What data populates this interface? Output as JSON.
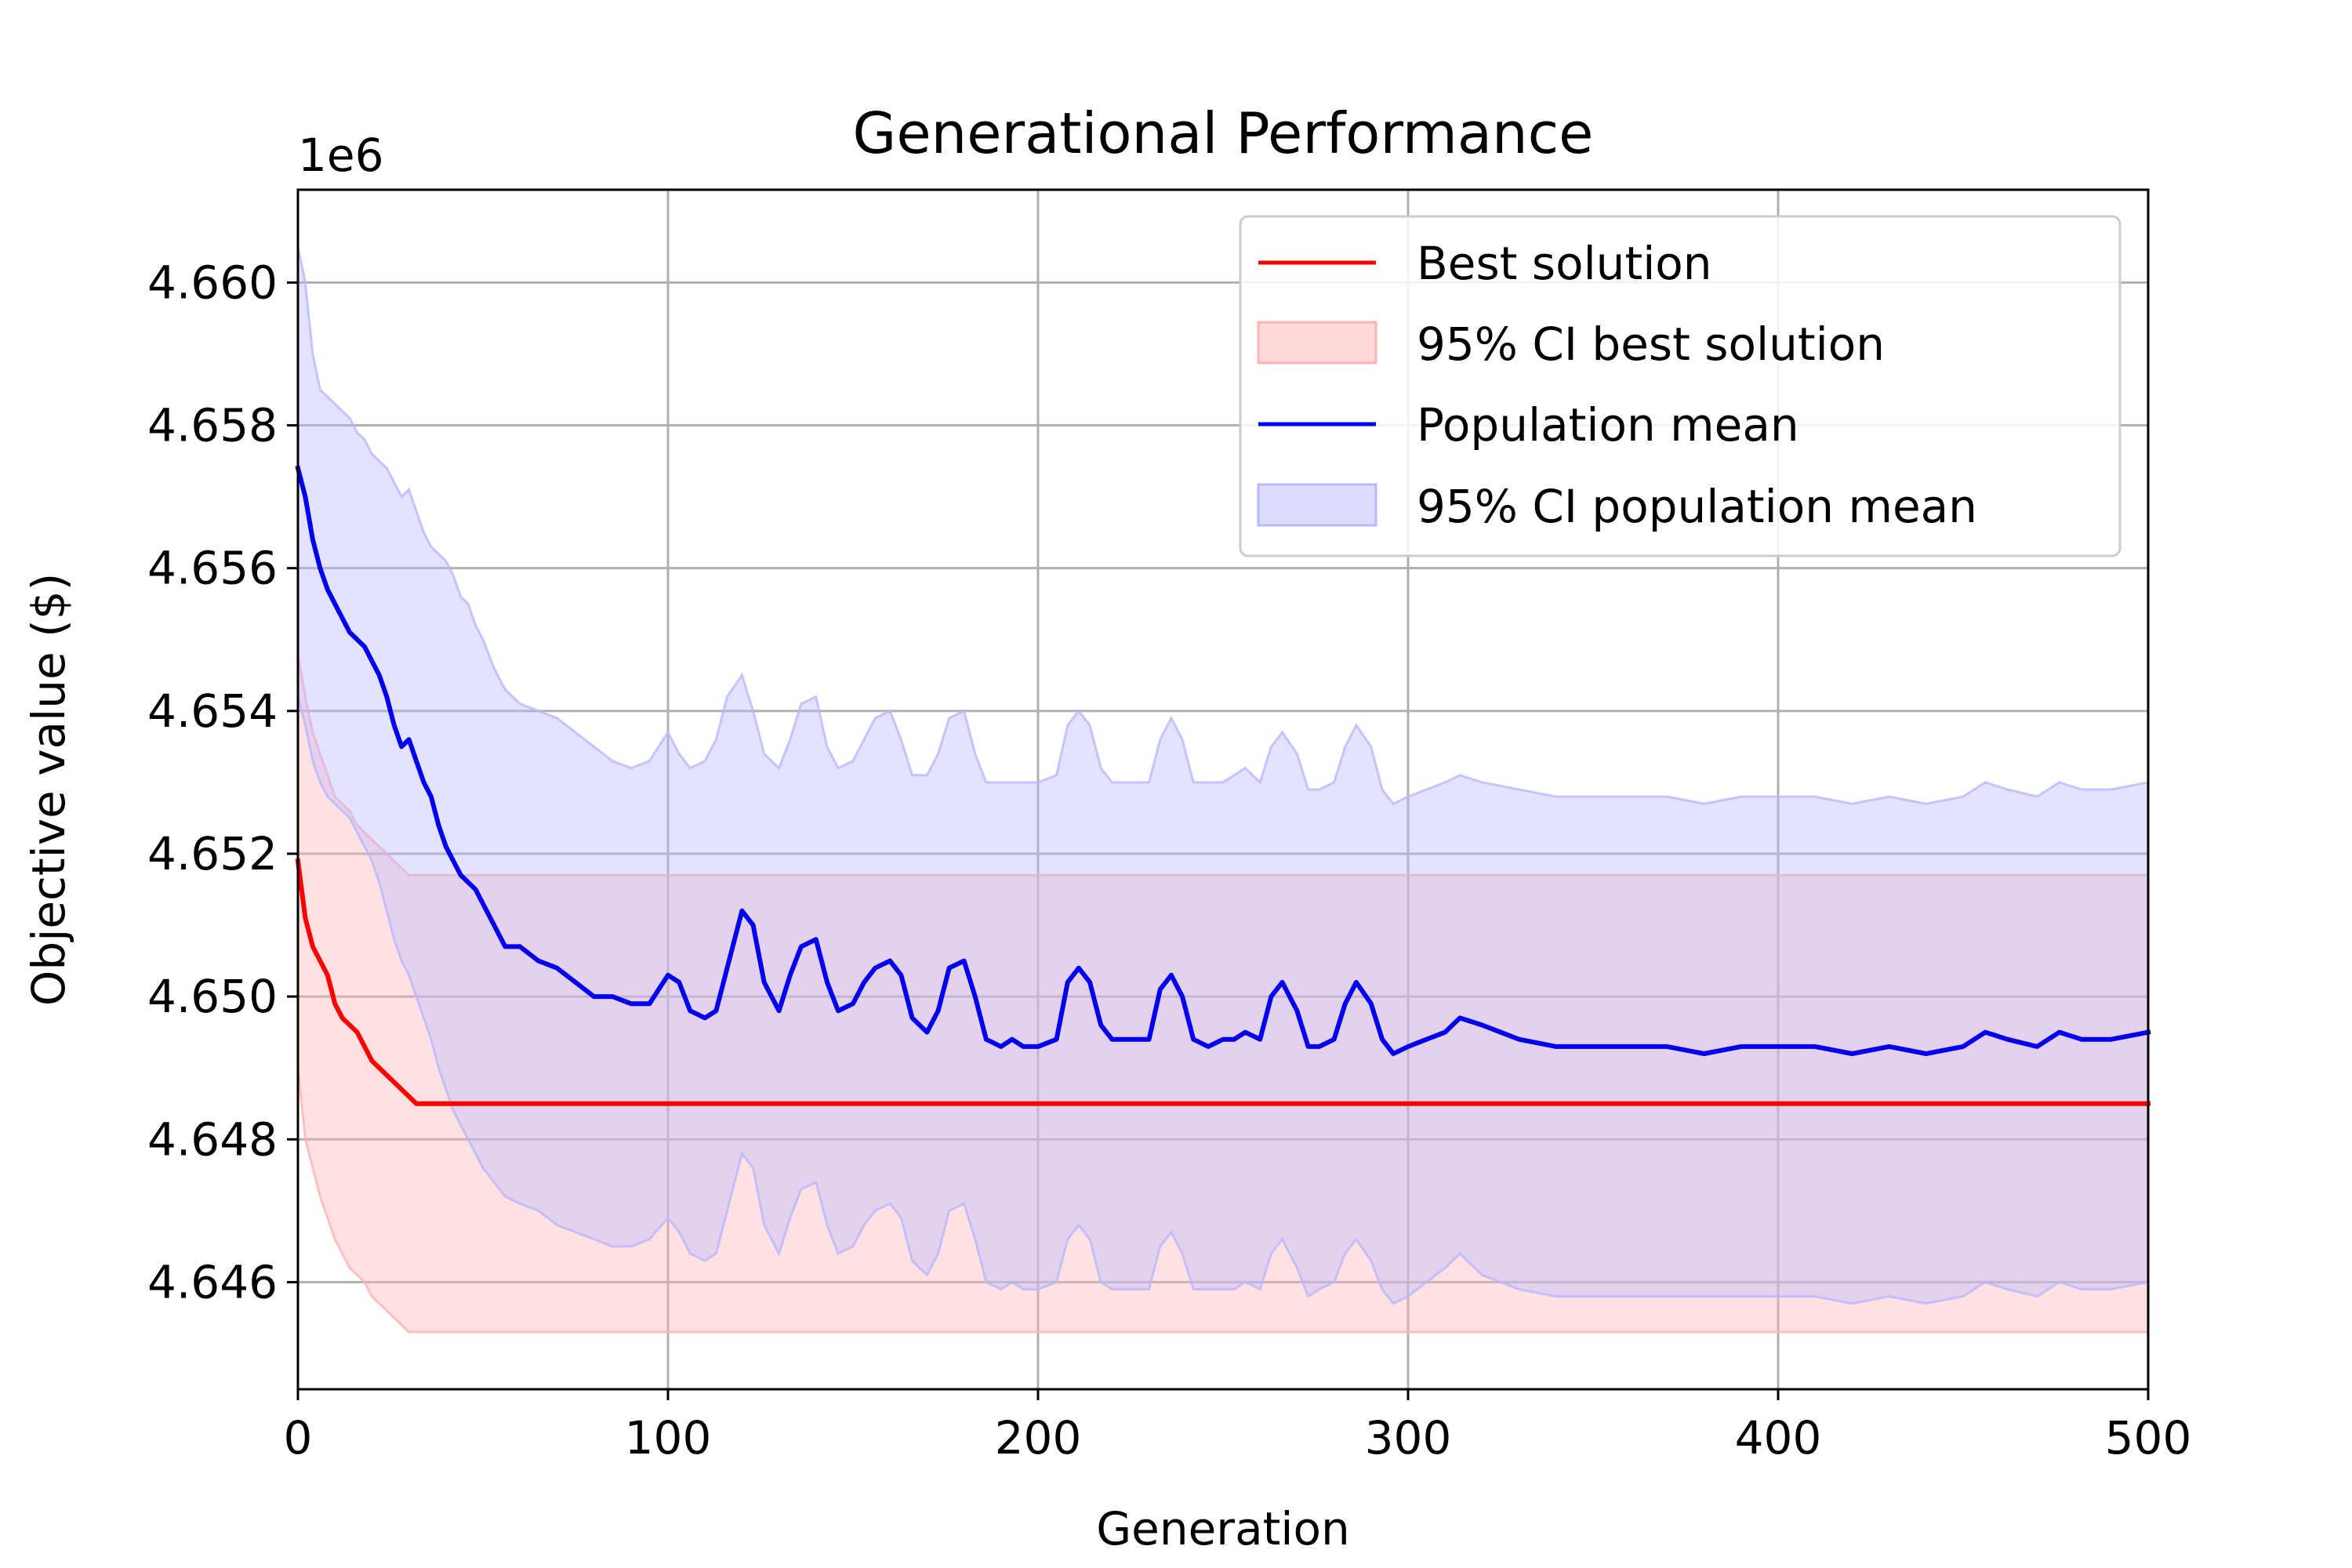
{
  "chart_data": {
    "type": "line",
    "title": "Generational Performance",
    "xlabel": "Generation",
    "ylabel": "Objective value ($)",
    "y_offset_label": "1e6",
    "y_multiplier": 1000000,
    "xlim": [
      0,
      500
    ],
    "ylim": [
      4.6445,
      4.6613
    ],
    "x_ticks": [
      0,
      100,
      200,
      300,
      400,
      500
    ],
    "x_tick_labels": [
      "0",
      "100",
      "200",
      "300",
      "400",
      "500"
    ],
    "y_ticks": [
      4.646,
      4.648,
      4.65,
      4.652,
      4.654,
      4.656,
      4.658,
      4.66
    ],
    "y_tick_labels": [
      "4.646",
      "4.648",
      "4.650",
      "4.652",
      "4.654",
      "4.656",
      "4.658",
      "4.660"
    ],
    "grid": true,
    "legend_position": "top-right",
    "colors": {
      "best_line": "#ff0000",
      "best_band": "#ffb3b3",
      "mean_line": "#0000ee",
      "mean_band": "#b8b8ff",
      "grid": "#b0b0b0"
    },
    "legend": [
      {
        "label": "Best solution",
        "kind": "line",
        "series": "best"
      },
      {
        "label": "95% CI best solution",
        "kind": "patch",
        "series": "best"
      },
      {
        "label": "Population mean",
        "kind": "line",
        "series": "mean"
      },
      {
        "label": "95% CI population mean",
        "kind": "patch",
        "series": "mean"
      }
    ],
    "series": [
      {
        "name": "Best solution",
        "key": "best",
        "x": [
          0,
          2,
          4,
          6,
          8,
          10,
          12,
          14,
          16,
          18,
          20,
          22,
          24,
          26,
          28,
          30,
          32,
          34,
          36,
          40,
          100,
          200,
          300,
          400,
          500
        ],
        "y": [
          4.6519,
          4.6511,
          4.6507,
          4.6505,
          4.6503,
          4.6499,
          4.6497,
          4.6496,
          4.6495,
          4.6493,
          4.6491,
          4.649,
          4.6489,
          4.6488,
          4.6487,
          4.6486,
          4.6485,
          4.6485,
          4.6485,
          4.6485,
          4.6485,
          4.6485,
          4.6485,
          4.6485,
          4.6485
        ],
        "ci_upper": [
          4.6548,
          4.6542,
          4.6537,
          4.6534,
          4.6531,
          4.6528,
          4.6527,
          4.6526,
          4.6524,
          4.6523,
          4.6522,
          4.6521,
          4.652,
          4.6519,
          4.6518,
          4.6517,
          4.6517,
          4.6517,
          4.6517,
          4.6517,
          4.6517,
          4.6517,
          4.6517,
          4.6517,
          4.6517
        ],
        "ci_lower": [
          4.649,
          4.648,
          4.6476,
          4.6472,
          4.6469,
          4.6466,
          4.6464,
          4.6462,
          4.6461,
          4.646,
          4.6458,
          4.6457,
          4.6456,
          4.6455,
          4.6454,
          4.6453,
          4.6453,
          4.6453,
          4.6453,
          4.6453,
          4.6453,
          4.6453,
          4.6453,
          4.6453,
          4.6453
        ]
      },
      {
        "name": "Population mean",
        "key": "mean",
        "x": [
          0,
          2,
          4,
          6,
          8,
          10,
          12,
          14,
          16,
          18,
          20,
          22,
          24,
          26,
          28,
          30,
          32,
          34,
          36,
          38,
          40,
          42,
          44,
          46,
          48,
          50,
          53,
          56,
          60,
          65,
          70,
          75,
          80,
          85,
          90,
          95,
          100,
          103,
          106,
          110,
          113,
          116,
          120,
          123,
          126,
          130,
          133,
          136,
          140,
          143,
          146,
          150,
          153,
          156,
          160,
          163,
          166,
          170,
          173,
          176,
          180,
          183,
          186,
          190,
          193,
          196,
          200,
          205,
          208,
          211,
          214,
          217,
          220,
          225,
          230,
          233,
          236,
          239,
          242,
          246,
          250,
          253,
          256,
          260,
          263,
          266,
          270,
          273,
          276,
          280,
          283,
          286,
          290,
          293,
          296,
          300,
          305,
          310,
          314,
          320,
          330,
          340,
          350,
          360,
          370,
          380,
          390,
          400,
          410,
          420,
          430,
          440,
          450,
          456,
          462,
          470,
          476,
          482,
          490,
          500
        ],
        "y": [
          4.6574,
          4.657,
          4.6564,
          4.656,
          4.6557,
          4.6555,
          4.6553,
          4.6551,
          4.655,
          4.6549,
          4.6547,
          4.6545,
          4.6542,
          4.6538,
          4.6535,
          4.6536,
          4.6533,
          4.653,
          4.6528,
          4.6524,
          4.6521,
          4.6519,
          4.6517,
          4.6516,
          4.6515,
          4.6513,
          4.651,
          4.6507,
          4.6507,
          4.6505,
          4.6504,
          4.6502,
          4.65,
          4.65,
          4.6499,
          4.6499,
          4.6503,
          4.6502,
          4.6498,
          4.6497,
          4.6498,
          4.6504,
          4.6512,
          4.651,
          4.6502,
          4.6498,
          4.6503,
          4.6507,
          4.6508,
          4.6502,
          4.6498,
          4.6499,
          4.6502,
          4.6504,
          4.6505,
          4.6503,
          4.6497,
          4.6495,
          4.6498,
          4.6504,
          4.6505,
          4.65,
          4.6494,
          4.6493,
          4.6494,
          4.6493,
          4.6493,
          4.6494,
          4.6502,
          4.6504,
          4.6502,
          4.6496,
          4.6494,
          4.6494,
          4.6494,
          4.6501,
          4.6503,
          4.65,
          4.6494,
          4.6493,
          4.6494,
          4.6494,
          4.6495,
          4.6494,
          4.65,
          4.6502,
          4.6498,
          4.6493,
          4.6493,
          4.6494,
          4.6499,
          4.6502,
          4.6499,
          4.6494,
          4.6492,
          4.6493,
          4.6494,
          4.6495,
          4.6497,
          4.6496,
          4.6494,
          4.6493,
          4.6493,
          4.6493,
          4.6493,
          4.6492,
          4.6493,
          4.6493,
          4.6493,
          4.6492,
          4.6493,
          4.6492,
          4.6493,
          4.6495,
          4.6494,
          4.6493,
          4.6495,
          4.6494,
          4.6494,
          4.6495
        ],
        "ci_upper": [
          4.6605,
          4.66,
          4.659,
          4.6585,
          4.6584,
          4.6583,
          4.6582,
          4.6581,
          4.6579,
          4.6578,
          4.6576,
          4.6575,
          4.6574,
          4.6572,
          4.657,
          4.6571,
          4.6568,
          4.6565,
          4.6563,
          4.6562,
          4.6561,
          4.6559,
          4.6556,
          4.6555,
          4.6552,
          4.655,
          4.6546,
          4.6543,
          4.6541,
          4.654,
          4.6539,
          4.6537,
          4.6535,
          4.6533,
          4.6532,
          4.6533,
          4.6537,
          4.6534,
          4.6532,
          4.6533,
          4.6536,
          4.6542,
          4.6545,
          4.654,
          4.6534,
          4.6532,
          4.6536,
          4.6541,
          4.6542,
          4.6535,
          4.6532,
          4.6533,
          4.6536,
          4.6539,
          4.654,
          4.6536,
          4.6531,
          4.6531,
          4.6534,
          4.6539,
          4.654,
          4.6534,
          4.653,
          4.653,
          4.653,
          4.653,
          4.653,
          4.6531,
          4.6538,
          4.654,
          4.6538,
          4.6532,
          4.653,
          4.653,
          4.653,
          4.6536,
          4.6539,
          4.6536,
          4.653,
          4.653,
          4.653,
          4.6531,
          4.6532,
          4.653,
          4.6535,
          4.6537,
          4.6534,
          4.6529,
          4.6529,
          4.653,
          4.6535,
          4.6538,
          4.6535,
          4.6529,
          4.6527,
          4.6528,
          4.6529,
          4.653,
          4.6531,
          4.653,
          4.6529,
          4.6528,
          4.6528,
          4.6528,
          4.6528,
          4.6527,
          4.6528,
          4.6528,
          4.6528,
          4.6527,
          4.6528,
          4.6527,
          4.6528,
          4.653,
          4.6529,
          4.6528,
          4.653,
          4.6529,
          4.6529,
          4.653
        ],
        "ci_lower": [
          4.6542,
          4.6538,
          4.6533,
          4.653,
          4.6528,
          4.6527,
          4.6526,
          4.6525,
          4.6523,
          4.6521,
          4.6519,
          4.6516,
          4.6512,
          4.6508,
          4.6505,
          4.6503,
          4.65,
          4.6497,
          4.6494,
          4.649,
          4.6487,
          4.6484,
          4.6482,
          4.648,
          4.6478,
          4.6476,
          4.6474,
          4.6472,
          4.6471,
          4.647,
          4.6468,
          4.6467,
          4.6466,
          4.6465,
          4.6465,
          4.6466,
          4.6469,
          4.6467,
          4.6464,
          4.6463,
          4.6464,
          4.647,
          4.6478,
          4.6476,
          4.6468,
          4.6464,
          4.6469,
          4.6473,
          4.6474,
          4.6468,
          4.6464,
          4.6465,
          4.6468,
          4.647,
          4.6471,
          4.6469,
          4.6463,
          4.6461,
          4.6464,
          4.647,
          4.6471,
          4.6466,
          4.646,
          4.6459,
          4.646,
          4.6459,
          4.6459,
          4.646,
          4.6466,
          4.6468,
          4.6466,
          4.646,
          4.6459,
          4.6459,
          4.6459,
          4.6465,
          4.6467,
          4.6464,
          4.6459,
          4.6459,
          4.6459,
          4.6459,
          4.646,
          4.6459,
          4.6464,
          4.6466,
          4.6462,
          4.6458,
          4.6459,
          4.646,
          4.6464,
          4.6466,
          4.6463,
          4.6459,
          4.6457,
          4.6458,
          4.646,
          4.6462,
          4.6464,
          4.6461,
          4.6459,
          4.6458,
          4.6458,
          4.6458,
          4.6458,
          4.6458,
          4.6458,
          4.6458,
          4.6458,
          4.6457,
          4.6458,
          4.6457,
          4.6458,
          4.646,
          4.6459,
          4.6458,
          4.646,
          4.6459,
          4.6459,
          4.646
        ]
      }
    ]
  }
}
